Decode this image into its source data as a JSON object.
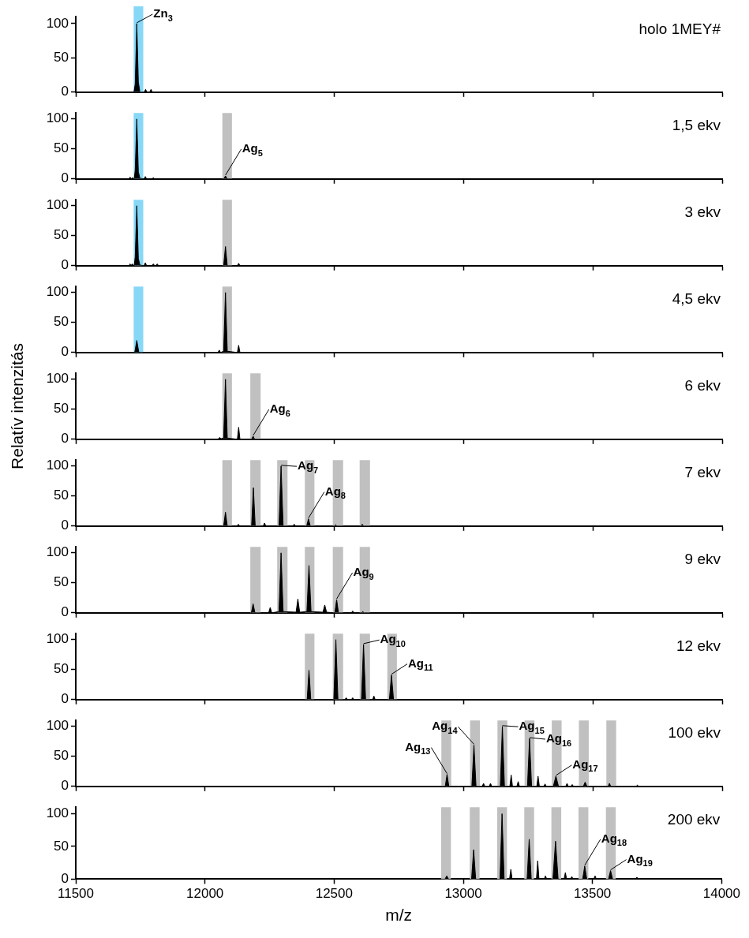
{
  "chart_data": [
    {
      "type": "area",
      "title": "holo 1MEY#",
      "color": "#000000",
      "xlim": [
        11500,
        14000
      ],
      "xticks": [
        11500,
        12000,
        12500,
        13000,
        13500,
        14000
      ],
      "ylim": [
        0,
        110
      ],
      "yticks": [
        0,
        50,
        100
      ],
      "tick_labels": "y",
      "x": [
        11500,
        11725,
        11730,
        11736,
        11742,
        11748,
        11765,
        11770,
        11775,
        11786,
        11791,
        11796,
        14000
      ],
      "values": [
        0,
        0,
        12,
        100,
        15,
        0,
        0,
        4,
        0,
        0,
        4,
        0,
        0
      ],
      "bands": [
        {
          "axis": "x",
          "from": 11724,
          "to": 11761,
          "color": "#87d7f7"
        }
      ],
      "annotations": [
        {
          "text": "Zn$_{3}$",
          "x": 11736,
          "y": 100
        }
      ]
    },
    {
      "type": "area",
      "title": "1,5 ekv",
      "color": "#000000",
      "xlim": [
        11500,
        14000
      ],
      "xticks": [
        11500,
        12000,
        12500,
        13000,
        13500,
        14000
      ],
      "ylim": [
        0,
        110
      ],
      "yticks": [
        0,
        50,
        100
      ],
      "tick_labels": "y",
      "x": [
        11500,
        11700,
        11706,
        11710,
        11714,
        11718,
        11722,
        11726,
        11730,
        11736,
        11742,
        11748,
        11764,
        11769,
        11774,
        11795,
        11800,
        11805,
        11960,
        12072,
        12079,
        12086,
        14000
      ],
      "values": [
        0,
        0,
        0,
        3,
        0,
        2,
        1,
        0,
        15,
        100,
        12,
        1,
        0,
        4,
        0,
        0,
        2,
        0,
        0,
        0,
        5,
        0,
        0
      ],
      "bands": [
        {
          "axis": "x",
          "from": 11724,
          "to": 11761,
          "color": "#87d7f7"
        },
        {
          "axis": "x",
          "from": 12067,
          "to": 12104,
          "color": "#c0c0c0"
        }
      ],
      "annotations": [
        {
          "text": "Ag$_{5}$",
          "x": 12079,
          "y": 5
        }
      ]
    },
    {
      "type": "area",
      "title": "3 ekv",
      "color": "#000000",
      "xlim": [
        11500,
        14000
      ],
      "xticks": [
        11500,
        12000,
        12500,
        13000,
        13500,
        14000
      ],
      "ylim": [
        0,
        110
      ],
      "yticks": [
        0,
        50,
        100
      ],
      "tick_labels": "y",
      "x": [
        11500,
        11700,
        11706,
        11710,
        11714,
        11718,
        11722,
        11726,
        11730,
        11736,
        11742,
        11748,
        11764,
        11769,
        11774,
        11795,
        11800,
        11805,
        11810,
        11815,
        11820,
        12072,
        12079,
        12086,
        12125,
        12130,
        12135,
        14000
      ],
      "values": [
        0,
        0,
        0,
        3,
        0,
        3,
        1,
        0,
        15,
        100,
        12,
        1,
        0,
        5,
        0,
        0,
        3,
        0,
        0,
        3,
        0,
        0,
        32,
        0,
        0,
        4,
        0,
        0
      ],
      "bands": [
        {
          "axis": "x",
          "from": 11724,
          "to": 11761,
          "color": "#87d7f7"
        },
        {
          "axis": "x",
          "from": 12067,
          "to": 12104,
          "color": "#c0c0c0"
        }
      ]
    },
    {
      "type": "area",
      "title": "4,5 ekv",
      "color": "#000000",
      "xlim": [
        11500,
        14000
      ],
      "xticks": [
        11500,
        12000,
        12500,
        13000,
        13500,
        14000
      ],
      "ylim": [
        0,
        110
      ],
      "yticks": [
        0,
        50,
        100
      ],
      "tick_labels": "y",
      "x": [
        11500,
        11728,
        11736,
        11744,
        12045,
        12050,
        12055,
        12060,
        12072,
        12079,
        12086,
        12125,
        12130,
        12135,
        14000
      ],
      "values": [
        0,
        0,
        20,
        0,
        0,
        0,
        4,
        0,
        2,
        100,
        2,
        0,
        12,
        0,
        0
      ],
      "bands": [
        {
          "axis": "x",
          "from": 11724,
          "to": 11761,
          "color": "#87d7f7"
        },
        {
          "axis": "x",
          "from": 12067,
          "to": 12104,
          "color": "#c0c0c0"
        }
      ]
    },
    {
      "type": "area",
      "title": "6 ekv",
      "ylabel": "Relatív intenzitás",
      "color": "#000000",
      "xlim": [
        11500,
        14000
      ],
      "xticks": [
        11500,
        12000,
        12500,
        13000,
        13500,
        14000
      ],
      "ylim": [
        0,
        110
      ],
      "yticks": [
        0,
        50,
        100
      ],
      "tick_labels": "y",
      "x": [
        11500,
        12050,
        12056,
        12062,
        12072,
        12079,
        12086,
        12125,
        12130,
        12135,
        12180,
        12186,
        12192,
        12250,
        14000
      ],
      "values": [
        0,
        0,
        3,
        1,
        2,
        100,
        2,
        0,
        20,
        0,
        0,
        5,
        0,
        0,
        0
      ],
      "bands": [
        {
          "axis": "x",
          "from": 12067,
          "to": 12104,
          "color": "#c0c0c0"
        },
        {
          "axis": "x",
          "from": 12175,
          "to": 12215,
          "color": "#c0c0c0"
        }
      ],
      "annotations": [
        {
          "text": "Ag$_{6}$",
          "x": 12186,
          "y": 5
        }
      ]
    },
    {
      "type": "area",
      "title": "7 ekv",
      "color": "#000000",
      "xlim": [
        11500,
        14000
      ],
      "xticks": [
        11500,
        12000,
        12500,
        13000,
        13500,
        14000
      ],
      "ylim": [
        0,
        110
      ],
      "yticks": [
        0,
        50,
        100
      ],
      "tick_labels": "y",
      "x": [
        11500,
        12072,
        12079,
        12086,
        12124,
        12129,
        12134,
        12180,
        12187,
        12194,
        12225,
        12230,
        12235,
        12286,
        12294,
        12302,
        12340,
        12345,
        12350,
        12393,
        12400,
        12407,
        12500,
        12505,
        12510,
        12603,
        12608,
        12613,
        14000
      ],
      "values": [
        0,
        0,
        23,
        0,
        0,
        3,
        0,
        0,
        64,
        0,
        0,
        5,
        0,
        0,
        100,
        0,
        0,
        3,
        0,
        0,
        12,
        0,
        0,
        2,
        0,
        0,
        3,
        0,
        0
      ],
      "bands": [
        {
          "axis": "x",
          "from": 12067,
          "to": 12104,
          "color": "#c0c0c0"
        },
        {
          "axis": "x",
          "from": 12175,
          "to": 12215,
          "color": "#c0c0c0"
        },
        {
          "axis": "x",
          "from": 12279,
          "to": 12319,
          "color": "#c0c0c0"
        },
        {
          "axis": "x",
          "from": 12386,
          "to": 12423,
          "color": "#c0c0c0"
        },
        {
          "axis": "x",
          "from": 12494,
          "to": 12534,
          "color": "#c0c0c0"
        },
        {
          "axis": "x",
          "from": 12598,
          "to": 12638,
          "color": "#c0c0c0"
        }
      ],
      "annotations": [
        {
          "text": "Ag$_{7}$",
          "x": 12294,
          "y": 100
        },
        {
          "text": "Ag$_{8}$",
          "x": 12400,
          "y": 12
        }
      ]
    },
    {
      "type": "area",
      "title": "9 ekv",
      "color": "#000000",
      "xlim": [
        11500,
        14000
      ],
      "xticks": [
        11500,
        12000,
        12500,
        13000,
        13500,
        14000
      ],
      "ylim": [
        0,
        110
      ],
      "yticks": [
        0,
        50,
        100
      ],
      "tick_labels": "y",
      "x": [
        11500,
        12179,
        12186,
        12193,
        12246,
        12252,
        12258,
        12286,
        12294,
        12302,
        12352,
        12359,
        12366,
        12394,
        12402,
        12410,
        12456,
        12463,
        12470,
        12502,
        12509,
        12516,
        12566,
        12571,
        12576,
        12605,
        12610,
        12615,
        14000
      ],
      "values": [
        0,
        0,
        15,
        0,
        0,
        9,
        0,
        2,
        100,
        2,
        1,
        23,
        1,
        2,
        79,
        2,
        1,
        13,
        1,
        0,
        22,
        0,
        0,
        3,
        0,
        0,
        2,
        0,
        0
      ],
      "bands": [
        {
          "axis": "x",
          "from": 12175,
          "to": 12215,
          "color": "#c0c0c0"
        },
        {
          "axis": "x",
          "from": 12279,
          "to": 12319,
          "color": "#c0c0c0"
        },
        {
          "axis": "x",
          "from": 12386,
          "to": 12423,
          "color": "#c0c0c0"
        },
        {
          "axis": "x",
          "from": 12494,
          "to": 12534,
          "color": "#c0c0c0"
        },
        {
          "axis": "x",
          "from": 12598,
          "to": 12638,
          "color": "#c0c0c0"
        }
      ],
      "annotations": [
        {
          "text": "Ag$_{9}$",
          "x": 12509,
          "y": 22
        }
      ]
    },
    {
      "type": "area",
      "title": "12 ekv",
      "color": "#000000",
      "xlim": [
        11500,
        14000
      ],
      "xticks": [
        11500,
        12000,
        12500,
        13000,
        13500,
        14000
      ],
      "ylim": [
        0,
        110
      ],
      "yticks": [
        0,
        50,
        100
      ],
      "tick_labels": "y",
      "x": [
        11500,
        12395,
        12402,
        12409,
        12498,
        12506,
        12514,
        12541,
        12546,
        12551,
        12566,
        12571,
        12576,
        12605,
        12613,
        12621,
        12648,
        12653,
        12658,
        12713,
        12721,
        12729,
        14000
      ],
      "values": [
        0,
        0,
        49,
        0,
        0,
        100,
        0,
        0,
        3,
        0,
        0,
        3,
        0,
        0,
        92,
        0,
        0,
        6,
        0,
        0,
        41,
        0,
        0
      ],
      "bands": [
        {
          "axis": "x",
          "from": 12386,
          "to": 12423,
          "color": "#c0c0c0"
        },
        {
          "axis": "x",
          "from": 12494,
          "to": 12534,
          "color": "#c0c0c0"
        },
        {
          "axis": "x",
          "from": 12598,
          "to": 12638,
          "color": "#c0c0c0"
        },
        {
          "axis": "x",
          "from": 12705,
          "to": 12742,
          "color": "#c0c0c0"
        }
      ],
      "annotations": [
        {
          "text": "Ag$_{10}$",
          "x": 12613,
          "y": 92
        },
        {
          "text": "Ag$_{11}$",
          "x": 12721,
          "y": 41
        }
      ]
    },
    {
      "type": "area",
      "title": "100 ekv",
      "color": "#000000",
      "xlim": [
        11500,
        14000
      ],
      "xticks": [
        11500,
        12000,
        12500,
        13000,
        13500,
        14000
      ],
      "ylim": [
        0,
        110
      ],
      "yticks": [
        0,
        50,
        100
      ],
      "tick_labels": "y",
      "x": [
        11500,
        12929,
        12936,
        12943,
        13032,
        13040,
        13048,
        13072,
        13077,
        13082,
        13099,
        13104,
        13109,
        13142,
        13150,
        13158,
        13179,
        13184,
        13189,
        13206,
        13211,
        13216,
        13247,
        13255,
        13263,
        13283,
        13288,
        13293,
        13310,
        13315,
        13320,
        13347,
        13357,
        13367,
        13395,
        13400,
        13405,
        13415,
        13420,
        13425,
        13463,
        13470,
        13477,
        13559,
        13564,
        13569,
        13667,
        13672,
        13677,
        14000
      ],
      "values": [
        0,
        0,
        20,
        0,
        0,
        69,
        0,
        0,
        5,
        0,
        0,
        5,
        0,
        0,
        100,
        0,
        0,
        19,
        0,
        0,
        8,
        0,
        0,
        80,
        0,
        0,
        17,
        0,
        0,
        4,
        0,
        0,
        17,
        0,
        0,
        5,
        0,
        0,
        3,
        0,
        0,
        7,
        0,
        0,
        5,
        0,
        0,
        2,
        0,
        0
      ],
      "bands": [
        {
          "axis": "x",
          "from": 12914,
          "to": 12952,
          "color": "#c0c0c0"
        },
        {
          "axis": "x",
          "from": 13025,
          "to": 13063,
          "color": "#c0c0c0"
        },
        {
          "axis": "x",
          "from": 13131,
          "to": 13169,
          "color": "#c0c0c0"
        },
        {
          "axis": "x",
          "from": 13236,
          "to": 13274,
          "color": "#c0c0c0"
        },
        {
          "axis": "x",
          "from": 13341,
          "to": 13379,
          "color": "#c0c0c0"
        },
        {
          "axis": "x",
          "from": 13446,
          "to": 13484,
          "color": "#c0c0c0"
        },
        {
          "axis": "x",
          "from": 13552,
          "to": 13590,
          "color": "#c0c0c0"
        }
      ],
      "annotations": [
        {
          "text": "Ag$_{13}$",
          "x": 12936,
          "y": 20
        },
        {
          "text": "Ag$_{14}$",
          "x": 13040,
          "y": 69
        },
        {
          "text": "Ag$_{15}$",
          "x": 13150,
          "y": 100
        },
        {
          "text": "Ag$_{16}$",
          "x": 13255,
          "y": 80
        },
        {
          "text": "Ag$_{17}$",
          "x": 13357,
          "y": 17
        }
      ]
    },
    {
      "type": "area",
      "title": "200 ekv",
      "xlabel": "m/z",
      "color": "#000000",
      "xlim": [
        11500,
        14000
      ],
      "xticks": [
        11500,
        12000,
        12500,
        13000,
        13500,
        14000
      ],
      "ylim": [
        0,
        110
      ],
      "yticks": [
        0,
        50,
        100
      ],
      "x": [
        11500,
        12929,
        12936,
        12943,
        13032,
        13040,
        13048,
        13142,
        13150,
        13158,
        13179,
        13184,
        13189,
        13247,
        13255,
        13263,
        13283,
        13288,
        13293,
        13313,
        13318,
        13323,
        13347,
        13357,
        13367,
        13390,
        13395,
        13400,
        13415,
        13420,
        13425,
        13462,
        13470,
        13478,
        13505,
        13510,
        13515,
        13562,
        13570,
        13578,
        13667,
        13672,
        13677,
        14000
      ],
      "values": [
        0,
        0,
        5,
        0,
        0,
        45,
        0,
        0,
        100,
        0,
        0,
        15,
        0,
        0,
        61,
        0,
        0,
        28,
        0,
        0,
        5,
        0,
        0,
        58,
        0,
        0,
        10,
        0,
        0,
        4,
        0,
        0,
        20,
        0,
        0,
        5,
        0,
        0,
        13,
        0,
        0,
        3,
        0,
        0
      ],
      "bands": [
        {
          "axis": "x",
          "from": 12914,
          "to": 12952,
          "color": "#c0c0c0"
        },
        {
          "axis": "x",
          "from": 13025,
          "to": 13063,
          "color": "#c0c0c0"
        },
        {
          "axis": "x",
          "from": 13131,
          "to": 13169,
          "color": "#c0c0c0"
        },
        {
          "axis": "x",
          "from": 13236,
          "to": 13274,
          "color": "#c0c0c0"
        },
        {
          "axis": "x",
          "from": 13341,
          "to": 13379,
          "color": "#c0c0c0"
        },
        {
          "axis": "x",
          "from": 13446,
          "to": 13484,
          "color": "#c0c0c0"
        },
        {
          "axis": "x",
          "from": 13552,
          "to": 13590,
          "color": "#c0c0c0"
        }
      ],
      "annotations": [
        {
          "text": "Ag$_{18}$",
          "x": 13470,
          "y": 20
        },
        {
          "text": "Ag$_{19}$",
          "x": 13570,
          "y": 13
        }
      ]
    }
  ]
}
